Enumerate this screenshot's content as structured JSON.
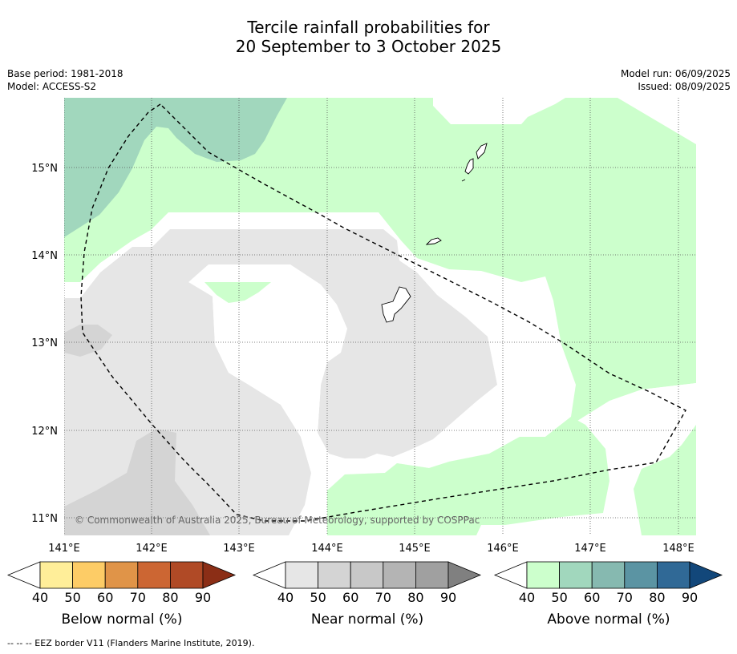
{
  "title": {
    "line1": "Tercile rainfall probabilities for",
    "line2": "20 September to 3 October 2025"
  },
  "left_meta": {
    "base_period": "Base period: 1981-2018",
    "model": "Model: ACCESS-S2"
  },
  "right_meta": {
    "model_run": "Model run: 06/09/2025",
    "issued": "Issued: 08/09/2025"
  },
  "map": {
    "x_ticks": [
      "141°E",
      "142°E",
      "143°E",
      "144°E",
      "145°E",
      "146°E",
      "147°E",
      "148°E"
    ],
    "y_ticks": [
      "15°N",
      "14°N",
      "13°N",
      "12°N",
      "11°N"
    ],
    "lon_range": [
      140.9,
      148.2
    ],
    "lat_range": [
      10.8,
      15.8
    ],
    "copyright": "© Commonwealth of Australia 2025, Bureau of Meteorology, supported by COSPPac"
  },
  "colorbars": [
    {
      "label": "Below normal (%)",
      "ticks": [
        "40",
        "50",
        "60",
        "70",
        "80",
        "90"
      ],
      "colors": [
        "#ffffff",
        "#ffee99",
        "#fdcc66",
        "#e09448",
        "#cc6633",
        "#b04a26",
        "#8b2e16"
      ]
    },
    {
      "label": "Near normal (%)",
      "ticks": [
        "40",
        "50",
        "60",
        "70",
        "80",
        "90"
      ],
      "colors": [
        "#ffffff",
        "#e6e6e6",
        "#d4d4d4",
        "#c8c8c8",
        "#b4b4b4",
        "#a0a0a0",
        "#808080"
      ]
    },
    {
      "label": "Above normal (%)",
      "ticks": [
        "40",
        "50",
        "60",
        "70",
        "80",
        "90"
      ],
      "colors": [
        "#ffffff",
        "#ccffcc",
        "#a1d7bd",
        "#86b9b0",
        "#5b94a3",
        "#306996",
        "#12477a"
      ]
    }
  ],
  "footnote": "--  --  -- EEZ border V11 (Flanders Marine Institute, 2019)."
}
